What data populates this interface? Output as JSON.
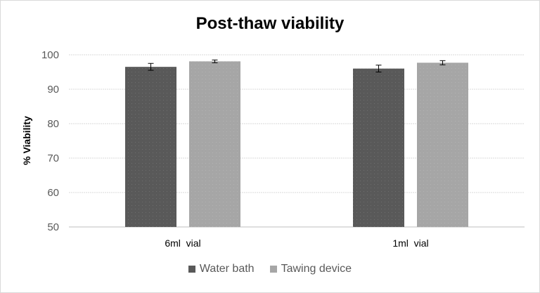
{
  "chart_data": {
    "type": "bar",
    "title": "Post-thaw viability",
    "xlabel": "",
    "ylabel": "% Viability",
    "ylim": [
      50,
      100
    ],
    "yticks": [
      50,
      60,
      70,
      80,
      90,
      100
    ],
    "grid": true,
    "legend_position": "bottom",
    "categories": [
      "6ml  vial",
      "1ml  vial"
    ],
    "series": [
      {
        "name": "Water bath",
        "color": "#595959",
        "values": [
          96.5,
          96.0
        ],
        "errors": [
          1.0,
          1.0
        ]
      },
      {
        "name": "Tawing device",
        "color": "#a6a6a6",
        "values": [
          98.1,
          97.7
        ],
        "errors": [
          0.4,
          0.6
        ]
      }
    ]
  }
}
